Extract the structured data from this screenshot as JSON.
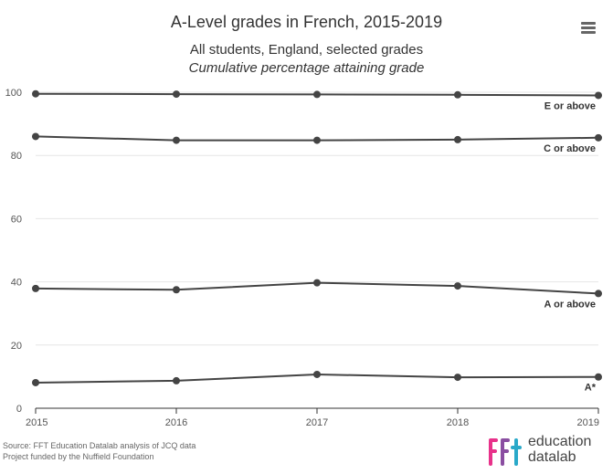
{
  "chart_data": {
    "type": "line",
    "title": "A-Level grades in French, 2015-2019",
    "subtitle_line1": "All students, England, selected grades",
    "subtitle_line2": "Cumulative percentage attaining grade",
    "categories": [
      "2015",
      "2016",
      "2017",
      "2018",
      "2019"
    ],
    "xlabel": "",
    "ylabel": "",
    "ylim": [
      0,
      100
    ],
    "yticks": [
      "0",
      "20",
      "40",
      "60",
      "80",
      "100"
    ],
    "grid": "horizontal",
    "series": [
      {
        "name": "E or above",
        "values": [
          99.5,
          99.4,
          99.3,
          99.2,
          99.0
        ]
      },
      {
        "name": "C or above",
        "values": [
          86.0,
          84.8,
          84.8,
          85.0,
          85.6
        ]
      },
      {
        "name": "A or above",
        "values": [
          37.9,
          37.5,
          39.7,
          38.7,
          36.3
        ]
      },
      {
        "name": "A*",
        "values": [
          8.1,
          8.7,
          10.7,
          9.8,
          9.9
        ]
      }
    ],
    "colors": {
      "line": "#444444",
      "grid": "#e6e6e6",
      "axis": "#333333"
    }
  },
  "menu_icon": "hamburger-menu-icon",
  "source": {
    "line1": "Source: FFT Education Datalab analysis of JCQ data",
    "line2": "Project funded by the Nuffield Foundation"
  },
  "logo": {
    "line1": "education",
    "line2": "datalab",
    "colors": {
      "f1": "#e8318a",
      "f2": "#8a4ea1",
      "t": "#29a9c9"
    }
  }
}
